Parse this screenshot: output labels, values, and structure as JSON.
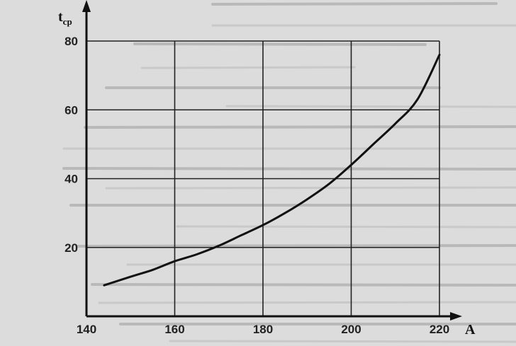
{
  "chart_data": {
    "type": "line",
    "title": "",
    "xlabel": "A",
    "ylabel": "t",
    "ylabel_subscript": "ср",
    "xlim": [
      140,
      222
    ],
    "ylim": [
      0,
      82
    ],
    "x_ticks": [
      140,
      160,
      180,
      200,
      220
    ],
    "y_ticks": [
      20,
      40,
      60,
      80
    ],
    "grid": true,
    "legend": "none",
    "colors": {
      "curve": "#111111",
      "grid": "#222222",
      "background": "#dcdcdc"
    },
    "series": [
      {
        "x": [
          144,
          150,
          155,
          160,
          165,
          170,
          175,
          180,
          185,
          190,
          195,
          200,
          205,
          210,
          215,
          220
        ],
        "y": [
          9,
          11.5,
          13.5,
          16,
          18,
          20.5,
          23.5,
          26.5,
          30,
          34,
          38.5,
          44,
          50,
          56,
          63,
          76
        ]
      }
    ]
  }
}
